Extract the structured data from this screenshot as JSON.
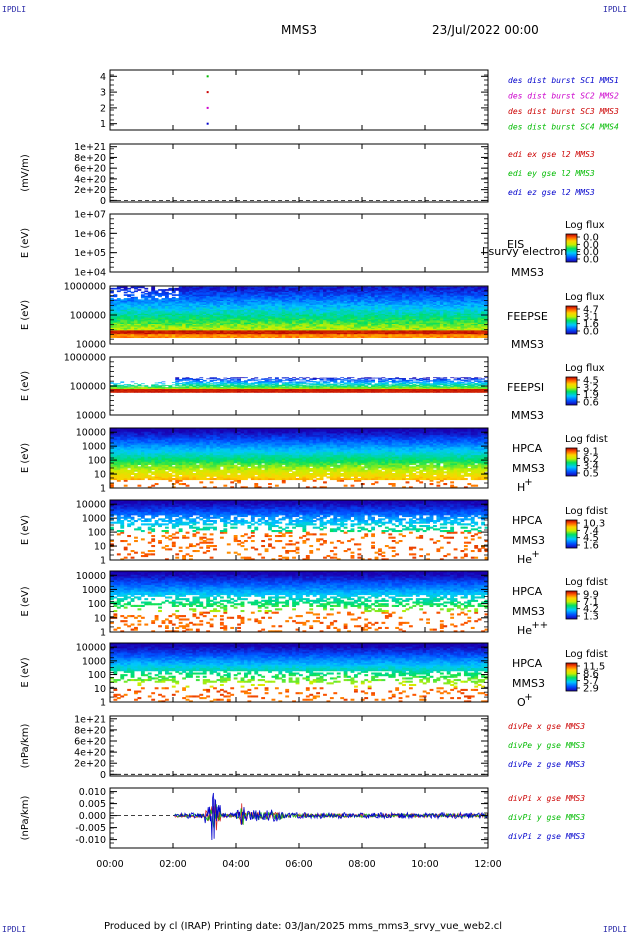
{
  "header": {
    "corner_left_top": "IPDLI",
    "corner_right_top": "IPDLI",
    "corner_left_bottom": "IPDLI",
    "corner_right_bottom": "IPDLI",
    "spacecraft": "MMS3",
    "date": "23/Jul/2022 00:00"
  },
  "footer": {
    "text": "Produced by cl (IRAP)   Printing date: 03/Jan/2025   mms_mms3_srvy_vue_web2.cl"
  },
  "colors": {
    "mms1": "#0000cc",
    "mms2": "#cc00cc",
    "mms3": "#cc0000",
    "mms4": "#00bb00",
    "x": "#cc0000",
    "y": "#00bb00",
    "z": "#0000cc",
    "black": "#000000"
  },
  "chart_data": {
    "type": "stacked-timeseries",
    "xaxis": {
      "ticks": [
        "00:00",
        "02:00",
        "04:00",
        "06:00",
        "08:00",
        "10:00",
        "12:00"
      ],
      "range_hours": [
        0,
        12
      ]
    },
    "panels": [
      {
        "id": "burst",
        "type": "line",
        "ylabel": "",
        "yticks": [
          "4",
          "3",
          "2",
          "1"
        ],
        "ylim": [
          0.6,
          4.4
        ],
        "legend": [
          {
            "text": "des dist burst SC1 MMS1",
            "color": "mms1"
          },
          {
            "text": "des dist burst SC2 MMS2",
            "color": "mms2"
          },
          {
            "text": "des dist burst SC3 MMS3",
            "color": "mms3"
          },
          {
            "text": "des dist burst SC4 MMS4",
            "color": "mms4"
          }
        ],
        "series": [
          {
            "name": "des dist burst SC1 MMS1",
            "color": "mms1",
            "points": [
              [
                3.1,
                1
              ]
            ]
          },
          {
            "name": "des dist burst SC2 MMS2",
            "color": "mms2",
            "points": [
              [
                3.1,
                2
              ]
            ]
          },
          {
            "name": "des dist burst SC3 MMS3",
            "color": "mms3",
            "points": [
              [
                3.1,
                3
              ]
            ]
          },
          {
            "name": "des dist burst SC4 MMS4",
            "color": "mms4",
            "points": [
              [
                3.1,
                4
              ]
            ]
          }
        ]
      },
      {
        "id": "edi",
        "type": "line",
        "ylabel": "(mV/m)",
        "yticks": [
          "1e+21",
          "8e+20",
          "6e+20",
          "4e+20",
          "2e+20",
          "0"
        ],
        "ytick_values": [
          1e+21,
          8e+20,
          6e+20,
          4e+20,
          2e+20,
          0
        ],
        "ylim": [
          -3e+19,
          1.05e+21
        ],
        "zero_line": true,
        "legend": [
          {
            "text": "edi ex gse l2 MMS3",
            "color": "x"
          },
          {
            "text": "edi ey gse l2 MMS3",
            "color": "y"
          },
          {
            "text": "edi ez gse l2 MMS3",
            "color": "z"
          }
        ]
      },
      {
        "id": "eis",
        "type": "spectrogram",
        "ylabel": "E (eV)",
        "yticks": [
          "1e+07",
          "1e+06",
          "1e+05",
          "1e+04"
        ],
        "ylog": [
          4,
          7
        ],
        "labels": [
          "EIS",
          "MMS3"
        ],
        "overflow_label": "l survy electron tc",
        "colorbar": {
          "title": "Log flux",
          "ticks": [
            "0.0",
            "0.0",
            "0.0",
            "0.0"
          ]
        },
        "spec": null
      },
      {
        "id": "feepse",
        "type": "spectrogram",
        "ylabel": "E (eV)",
        "yticks": [
          "1000000",
          "100000",
          "10000"
        ],
        "ylog": [
          4,
          6
        ],
        "labels": [
          "FEEPSE",
          "MMS3"
        ],
        "colorbar": {
          "title": "Log flux",
          "ticks": [
            "4.7",
            "3.1",
            "1.6",
            "0.0"
          ]
        },
        "spec": {
          "kind": "feeps",
          "seed": 11,
          "band": [
            4.32,
            4.48
          ],
          "lowfill": 4.22,
          "top": 5.98,
          "speckle": 0.0
        }
      },
      {
        "id": "feepsi",
        "type": "spectrogram",
        "ylabel": "E (eV)",
        "yticks": [
          "1000000",
          "100000",
          "10000"
        ],
        "ylog": [
          4,
          6
        ],
        "labels": [
          "FEEPSI",
          "MMS3"
        ],
        "colorbar": {
          "title": "Log flux",
          "ticks": [
            "4.5",
            "3.2",
            "1.9",
            "0.6"
          ]
        },
        "spec": {
          "kind": "feeps",
          "seed": 23,
          "band": [
            4.78,
            4.9
          ],
          "lowfill": 4.78,
          "top": 5.3,
          "speckle": 0.6
        }
      },
      {
        "id": "hpca_h",
        "type": "spectrogram",
        "ylabel": "E (eV)",
        "yticks": [
          "10000",
          "1000",
          "100",
          "10",
          "1"
        ],
        "ylog": [
          0,
          4.3
        ],
        "labels": [
          "HPCA",
          "MMS3",
          "H",
          "+"
        ],
        "colorbar": {
          "title": "Log fdist",
          "ticks": [
            "9.1",
            "6.2",
            "3.4",
            "0.5"
          ]
        },
        "spec": {
          "kind": "hpca",
          "seed": 31,
          "fill_bottom": 0.55,
          "gap": 0.0,
          "holes": 0.08
        }
      },
      {
        "id": "hpca_he1",
        "type": "spectrogram",
        "ylabel": "E (eV)",
        "yticks": [
          "10000",
          "1000",
          "100",
          "10",
          "1"
        ],
        "ylog": [
          0,
          4.3
        ],
        "labels": [
          "HPCA",
          "MMS3",
          "He",
          "+"
        ],
        "colorbar": {
          "title": "Log fdist",
          "ticks": [
            "10.3",
            "7.4",
            "4.5",
            "1.6"
          ]
        },
        "spec": {
          "kind": "hpca",
          "seed": 47,
          "fill_bottom": 2.0,
          "gap": 0.5,
          "holes": 0.35
        }
      },
      {
        "id": "hpca_he2",
        "type": "spectrogram",
        "ylabel": "E (eV)",
        "yticks": [
          "10000",
          "1000",
          "100",
          "10",
          "1"
        ],
        "ylog": [
          0,
          4.3
        ],
        "labels": [
          "HPCA",
          "MMS3",
          "He",
          "++"
        ],
        "colorbar": {
          "title": "Log fdist",
          "ticks": [
            "9.9",
            "7.1",
            "4.2",
            "1.3"
          ]
        },
        "spec": {
          "kind": "hpca",
          "seed": 59,
          "fill_bottom": 1.4,
          "gap": 0.3,
          "holes": 0.45
        }
      },
      {
        "id": "hpca_o",
        "type": "spectrogram",
        "ylabel": "E (eV)",
        "yticks": [
          "10000",
          "1000",
          "100",
          "10",
          "1"
        ],
        "ylog": [
          0,
          4.3
        ],
        "labels": [
          "HPCA",
          "MMS3",
          "O",
          "+"
        ],
        "colorbar": {
          "title": "Log fdist",
          "ticks": [
            "11.5",
            "8.6",
            "5.7",
            "2.9"
          ]
        },
        "spec": {
          "kind": "hpca",
          "seed": 71,
          "fill_bottom": 1.0,
          "gap": 0.4,
          "holes": 0.55
        }
      },
      {
        "id": "divpe",
        "type": "line",
        "ylabel": "(nPa/km)",
        "yticks": [
          "1e+21",
          "8e+20",
          "6e+20",
          "4e+20",
          "2e+20",
          "0"
        ],
        "ytick_values": [
          1e+21,
          8e+20,
          6e+20,
          4e+20,
          2e+20,
          0
        ],
        "ylim": [
          -3e+19,
          1.05e+21
        ],
        "zero_line": true,
        "legend": [
          {
            "text": "divPe x gse MMS3",
            "color": "x"
          },
          {
            "text": "divPe y gse MMS3",
            "color": "y"
          },
          {
            "text": "divPe z gse MMS3",
            "color": "z"
          }
        ]
      },
      {
        "id": "divpi",
        "type": "line",
        "ylabel": "(nPa/km)",
        "yticks": [
          "0.010",
          "0.005",
          "0.000",
          "-0.005",
          "-0.010"
        ],
        "ytick_values": [
          0.01,
          0.005,
          0.0,
          -0.005,
          -0.01
        ],
        "ylim": [
          -0.0135,
          0.0115
        ],
        "legend": [
          {
            "text": "divPi x gse MMS3",
            "color": "x"
          },
          {
            "text": "divPi y gse MMS3",
            "color": "y"
          },
          {
            "text": "divPi z gse MMS3",
            "color": "z"
          }
        ],
        "noise": {
          "start_hour": 2.05,
          "seed": 97
        }
      }
    ]
  }
}
